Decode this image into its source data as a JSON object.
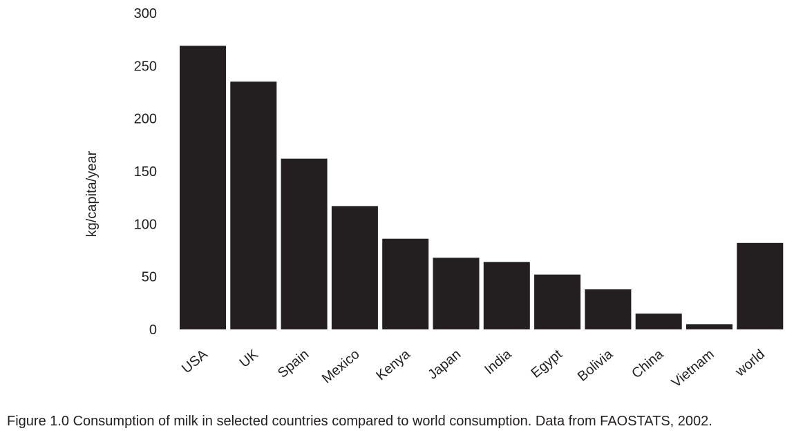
{
  "chart_data": {
    "type": "bar",
    "categories": [
      "USA",
      "UK",
      "Spain",
      "Mexico",
      "Kenya",
      "Japan",
      "India",
      "Egypt",
      "Bolivia",
      "China",
      "Vietnam",
      "world"
    ],
    "values": [
      269,
      235,
      162,
      117,
      86,
      68,
      64,
      52,
      38,
      15,
      5,
      82
    ],
    "title": "",
    "xlabel": "",
    "ylabel": "kg/capita/year",
    "ylim": [
      0,
      300
    ],
    "yticks": [
      0,
      50,
      100,
      150,
      200,
      250,
      300
    ],
    "grid": false,
    "legend": "none",
    "bar_color": "#231f20"
  },
  "caption": "Figure 1.0 Consumption of milk in selected countries compared to world consumption. Data from FAOSTATS, 2002."
}
